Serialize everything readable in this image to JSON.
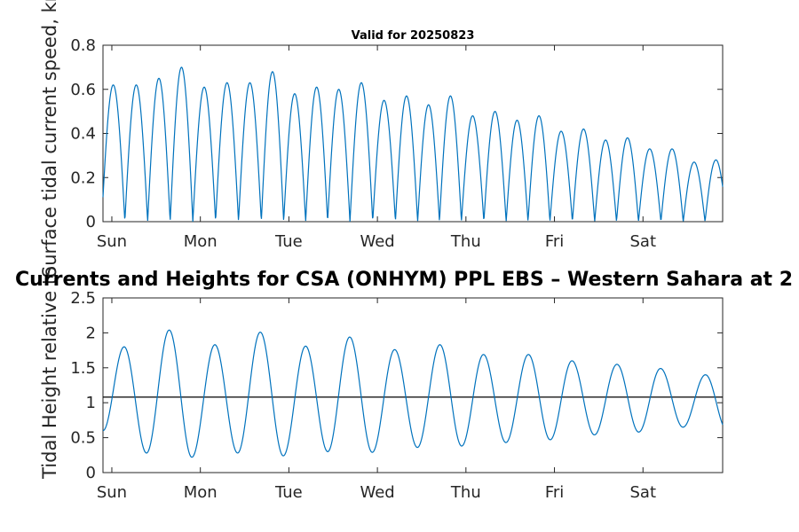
{
  "chart_data": [
    {
      "type": "line",
      "title": "Valid for 20250823",
      "ylabel": "Surface tidal current speed, kn",
      "xlabel": "",
      "x_ticks": [
        "Sun",
        "Mon",
        "Tue",
        "Wed",
        "Thu",
        "Fri",
        "Sat"
      ],
      "ylim": [
        0,
        0.8
      ],
      "yticks": [
        "0",
        "0.2",
        "0.4",
        "0.6",
        "0.8"
      ],
      "grid": false,
      "line_color": "#0072bd",
      "series": [
        {
          "x": [
            0.016,
            0.278,
            0.531,
            0.787,
            1.043,
            1.301,
            1.561,
            1.816,
            2.066,
            2.313,
            2.562,
            2.818,
            3.076,
            3.331,
            3.578,
            3.824,
            4.074,
            4.331,
            4.578,
            4.824,
            5.074,
            5.331,
            5.578,
            5.824,
            6.074,
            6.331,
            6.578,
            6.824
          ],
          "values": [
            0.62,
            0.62,
            0.65,
            0.7,
            0.61,
            0.63,
            0.63,
            0.68,
            0.58,
            0.61,
            0.6,
            0.63,
            0.55,
            0.57,
            0.53,
            0.57,
            0.48,
            0.5,
            0.46,
            0.48,
            0.41,
            0.42,
            0.37,
            0.38,
            0.33,
            0.33,
            0.27,
            0.28
          ]
        }
      ]
    },
    {
      "type": "line",
      "title": "Currents and Heights for CSA (ONHYM) PPL EBS  – Western Sahara at 2",
      "ylabel": "Tidal Height relative to",
      "xlabel": "",
      "x_ticks": [
        "Sun",
        "Mon",
        "Tue",
        "Wed",
        "Thu",
        "Fri",
        "Sat"
      ],
      "ylim": [
        0,
        2.5
      ],
      "yticks": [
        "0",
        "0.5",
        "1",
        "1.5",
        "2",
        "2.5"
      ],
      "reference_line": 1.08,
      "grid": false,
      "line_color": "#0072bd",
      "series": [
        {
          "extrema_x": [
            -0.1,
            0.139,
            0.392,
            0.648,
            0.904,
            1.164,
            1.421,
            1.677,
            1.937,
            2.189,
            2.439,
            2.687,
            2.942,
            3.195,
            3.452,
            3.706,
            3.952,
            4.198,
            4.452,
            4.706,
            4.952,
            5.198,
            5.452,
            5.706,
            5.952,
            6.198,
            6.452,
            6.706,
            6.952
          ],
          "extrema_y": [
            0.6,
            1.8,
            0.28,
            2.04,
            0.22,
            1.83,
            0.28,
            2.01,
            0.24,
            1.81,
            0.3,
            1.94,
            0.29,
            1.76,
            0.36,
            1.83,
            0.38,
            1.69,
            0.43,
            1.69,
            0.47,
            1.6,
            0.54,
            1.55,
            0.58,
            1.49,
            0.65,
            1.4,
            0.6
          ],
          "visible_x_range": [
            -0.1,
            6.9
          ]
        }
      ]
    }
  ]
}
